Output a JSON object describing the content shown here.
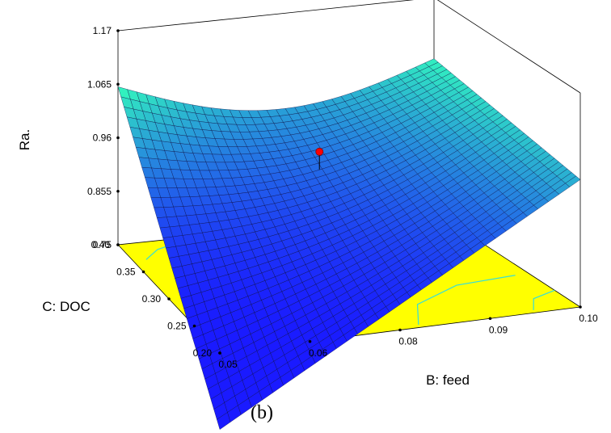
{
  "caption": "(b)",
  "chart_data": {
    "type": "surface3d",
    "zlabel": "Ra.",
    "xlabel": "B: feed",
    "ylabel": "C: DOC",
    "z_ticks": [
      "1.17",
      "1.065",
      "0.96",
      "0.855",
      "0.75"
    ],
    "x_ticks": [
      "0.05",
      "0.06",
      "0.08",
      "0.09",
      "0.10"
    ],
    "y_ticks": [
      "0.20",
      "0.25",
      "0.30",
      "0.35",
      "0.40"
    ],
    "xlim": [
      0.05,
      0.1
    ],
    "ylim": [
      0.2,
      0.4
    ],
    "zlim": [
      0.75,
      1.17
    ],
    "corners": [
      {
        "feed": 0.05,
        "doc": 0.4,
        "ra": 1.06
      },
      {
        "feed": 0.1,
        "doc": 0.4,
        "ra": 1.05
      },
      {
        "feed": 0.1,
        "doc": 0.2,
        "ra": 1.0
      },
      {
        "feed": 0.05,
        "doc": 0.2,
        "ra": 0.6
      }
    ],
    "optimum_point": {
      "feed": 0.075,
      "doc": 0.33,
      "ra": 0.97
    },
    "colors": {
      "floor": "#ffff00",
      "surface_low": "#1a1aff",
      "surface_high": "#33ffbb",
      "contour": "#33dddd",
      "point": "#ff0000"
    }
  }
}
